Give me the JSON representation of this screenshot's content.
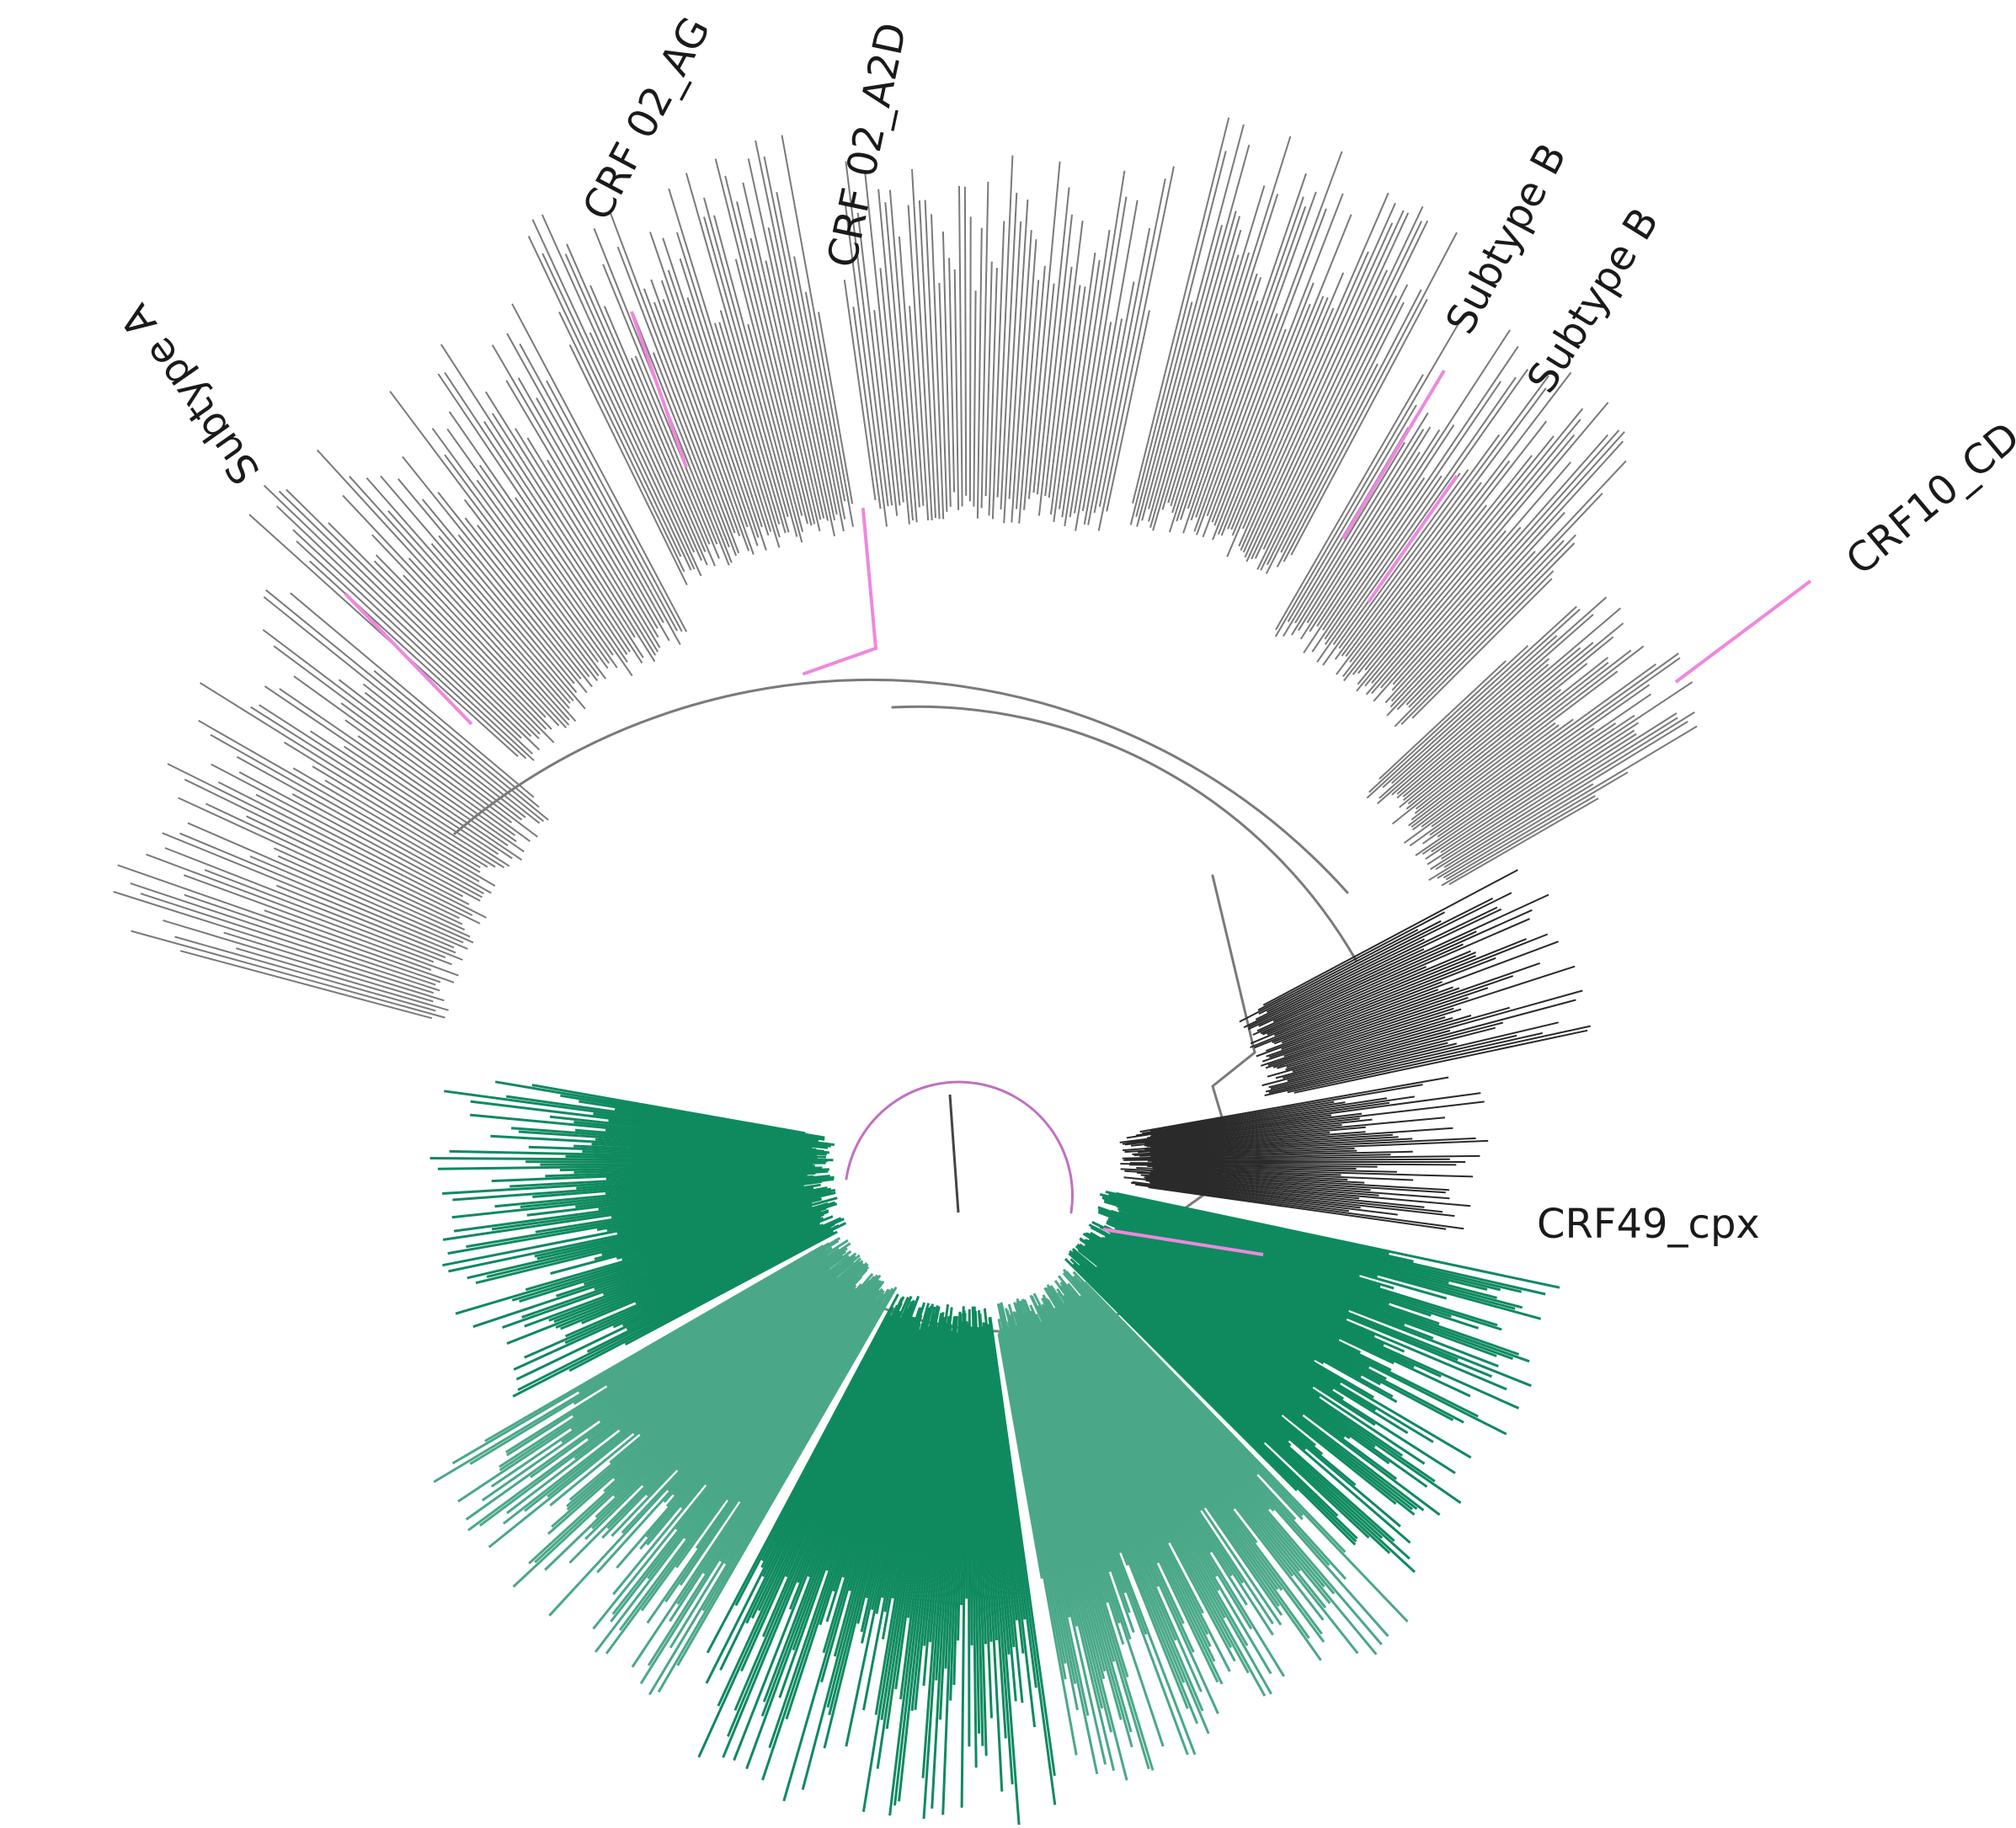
{
  "diagram": {
    "type": "circular-phylogenetic-tree",
    "colors": {
      "branch_gray": "#7a7a7a",
      "branch_dark": "#2a2a2a",
      "highlight_pink": "#ee88dd",
      "root_arc_pink": "#c070c0",
      "green_clade": "#0f8a5f",
      "green_clade_light": "#4aa888",
      "label_text": "#1a1a1a"
    },
    "labels": [
      {
        "id": "subtype-a",
        "text": "Subtype A"
      },
      {
        "id": "crf02-ag",
        "text": "CRF 02_AG"
      },
      {
        "id": "crf02-a2d",
        "text": "CRF 02_A2D"
      },
      {
        "id": "subtype-b-1",
        "text": "Subtype B"
      },
      {
        "id": "subtype-b-2",
        "text": "Subtype B"
      },
      {
        "id": "crf10-cd",
        "text": "CRF10_CD"
      },
      {
        "id": "crf49-cpx",
        "text": "CRF49_cpx"
      }
    ]
  }
}
